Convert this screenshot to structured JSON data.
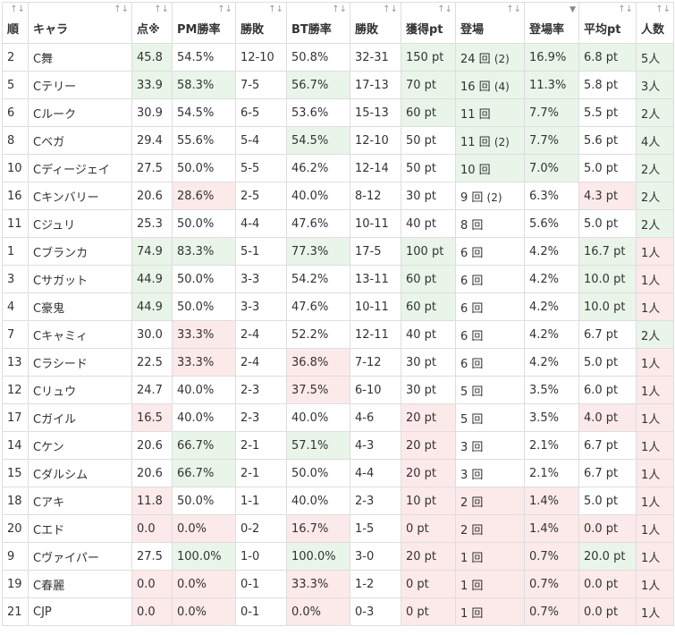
{
  "columns": [
    {
      "key": "rank",
      "label": "順",
      "sort": "↑↓"
    },
    {
      "key": "chara",
      "label": "キャラ",
      "sort": "↑↓"
    },
    {
      "key": "score",
      "label": "点※",
      "sort": "↑↓"
    },
    {
      "key": "pm_rate",
      "label": "PM勝率",
      "sort": "↑↓"
    },
    {
      "key": "record",
      "label": "勝敗",
      "sort": "↑↓"
    },
    {
      "key": "bt_rate",
      "label": "BT勝率",
      "sort": "↑↓"
    },
    {
      "key": "bt_record",
      "label": "勝敗",
      "sort": "↑↓"
    },
    {
      "key": "pt",
      "label": "獲得pt",
      "sort": "↑↓"
    },
    {
      "key": "appear",
      "label": "登場",
      "sort": "↑↓"
    },
    {
      "key": "appear_rate",
      "label": "登場率",
      "sort": "▼"
    },
    {
      "key": "avg_pt",
      "label": "平均pt",
      "sort": "↑↓"
    },
    {
      "key": "players",
      "label": "人数",
      "sort": "↑↓"
    }
  ],
  "colors": {
    "good": "#e8f5e8",
    "bad": "#fce9e9",
    "border": "#dedede"
  },
  "rows": [
    {
      "rank": "2",
      "chara": "C舞",
      "score": "45.8",
      "pm_rate": "54.5%",
      "record": "12-10",
      "bt_rate": "50.8%",
      "bt_record": "32-31",
      "pt": "150 pt",
      "appear": "24 回",
      "appear_extra": "(2)",
      "appear_rate": "16.9%",
      "avg_pt": "6.8 pt",
      "players": "5人",
      "hl": {
        "score": "g",
        "pt": "g",
        "appear": "g",
        "appear_rate": "g",
        "avg_pt": "g",
        "players": "g"
      }
    },
    {
      "rank": "5",
      "chara": "Cテリー",
      "score": "33.9",
      "pm_rate": "58.3%",
      "record": "7-5",
      "bt_rate": "56.7%",
      "bt_record": "17-13",
      "pt": "70 pt",
      "appear": "16 回",
      "appear_extra": "(4)",
      "appear_rate": "11.3%",
      "avg_pt": "5.8 pt",
      "players": "3人",
      "hl": {
        "score": "g",
        "pm_rate": "g",
        "bt_rate": "g",
        "pt": "g",
        "appear": "g",
        "appear_rate": "g",
        "players": "g"
      }
    },
    {
      "rank": "6",
      "chara": "Cルーク",
      "score": "30.9",
      "pm_rate": "54.5%",
      "record": "6-5",
      "bt_rate": "53.6%",
      "bt_record": "15-13",
      "pt": "60 pt",
      "appear": "11 回",
      "appear_extra": "",
      "appear_rate": "7.7%",
      "avg_pt": "5.5 pt",
      "players": "2人",
      "hl": {
        "pt": "g",
        "appear": "g",
        "appear_rate": "g",
        "players": "g"
      }
    },
    {
      "rank": "8",
      "chara": "Cベガ",
      "score": "29.4",
      "pm_rate": "55.6%",
      "record": "5-4",
      "bt_rate": "54.5%",
      "bt_record": "12-10",
      "pt": "50 pt",
      "appear": "11 回",
      "appear_extra": "(2)",
      "appear_rate": "7.7%",
      "avg_pt": "5.6 pt",
      "players": "4人",
      "hl": {
        "bt_rate": "g",
        "appear": "g",
        "appear_rate": "g",
        "players": "g"
      }
    },
    {
      "rank": "10",
      "chara": "Cディージェイ",
      "score": "27.5",
      "pm_rate": "50.0%",
      "record": "5-5",
      "bt_rate": "46.2%",
      "bt_record": "12-14",
      "pt": "50 pt",
      "appear": "10 回",
      "appear_extra": "",
      "appear_rate": "7.0%",
      "avg_pt": "5.0 pt",
      "players": "2人",
      "hl": {
        "appear": "g",
        "appear_rate": "g",
        "players": "g"
      }
    },
    {
      "rank": "16",
      "chara": "Cキンバリー",
      "score": "20.6",
      "pm_rate": "28.6%",
      "record": "2-5",
      "bt_rate": "40.0%",
      "bt_record": "8-12",
      "pt": "30 pt",
      "appear": "9 回",
      "appear_extra": "(2)",
      "appear_rate": "6.3%",
      "avg_pt": "4.3 pt",
      "players": "2人",
      "hl": {
        "pm_rate": "r",
        "avg_pt": "r",
        "players": "g"
      }
    },
    {
      "rank": "11",
      "chara": "Cジュリ",
      "score": "25.3",
      "pm_rate": "50.0%",
      "record": "4-4",
      "bt_rate": "47.6%",
      "bt_record": "10-11",
      "pt": "40 pt",
      "appear": "8 回",
      "appear_extra": "",
      "appear_rate": "5.6%",
      "avg_pt": "5.0 pt",
      "players": "2人",
      "hl": {
        "players": "g"
      }
    },
    {
      "rank": "1",
      "chara": "Cブランカ",
      "score": "74.9",
      "pm_rate": "83.3%",
      "record": "5-1",
      "bt_rate": "77.3%",
      "bt_record": "17-5",
      "pt": "100 pt",
      "appear": "6 回",
      "appear_extra": "",
      "appear_rate": "4.2%",
      "avg_pt": "16.7 pt",
      "players": "1人",
      "hl": {
        "score": "g",
        "pm_rate": "g",
        "bt_rate": "g",
        "pt": "g",
        "avg_pt": "g",
        "players": "r"
      }
    },
    {
      "rank": "3",
      "chara": "Cサガット",
      "score": "44.9",
      "pm_rate": "50.0%",
      "record": "3-3",
      "bt_rate": "54.2%",
      "bt_record": "13-11",
      "pt": "60 pt",
      "appear": "6 回",
      "appear_extra": "",
      "appear_rate": "4.2%",
      "avg_pt": "10.0 pt",
      "players": "1人",
      "hl": {
        "score": "g",
        "pt": "g",
        "avg_pt": "g",
        "players": "r"
      }
    },
    {
      "rank": "4",
      "chara": "C豪鬼",
      "score": "44.9",
      "pm_rate": "50.0%",
      "record": "3-3",
      "bt_rate": "47.6%",
      "bt_record": "10-11",
      "pt": "60 pt",
      "appear": "6 回",
      "appear_extra": "",
      "appear_rate": "4.2%",
      "avg_pt": "10.0 pt",
      "players": "1人",
      "hl": {
        "score": "g",
        "pt": "g",
        "avg_pt": "g",
        "players": "r"
      }
    },
    {
      "rank": "7",
      "chara": "Cキャミィ",
      "score": "30.0",
      "pm_rate": "33.3%",
      "record": "2-4",
      "bt_rate": "52.2%",
      "bt_record": "12-11",
      "pt": "40 pt",
      "appear": "6 回",
      "appear_extra": "",
      "appear_rate": "4.2%",
      "avg_pt": "6.7 pt",
      "players": "2人",
      "hl": {
        "pm_rate": "r",
        "players": "g"
      }
    },
    {
      "rank": "13",
      "chara": "Cラシード",
      "score": "22.5",
      "pm_rate": "33.3%",
      "record": "2-4",
      "bt_rate": "36.8%",
      "bt_record": "7-12",
      "pt": "30 pt",
      "appear": "6 回",
      "appear_extra": "",
      "appear_rate": "4.2%",
      "avg_pt": "5.0 pt",
      "players": "1人",
      "hl": {
        "pm_rate": "r",
        "bt_rate": "r",
        "players": "r"
      }
    },
    {
      "rank": "12",
      "chara": "Cリュウ",
      "score": "24.7",
      "pm_rate": "40.0%",
      "record": "2-3",
      "bt_rate": "37.5%",
      "bt_record": "6-10",
      "pt": "30 pt",
      "appear": "5 回",
      "appear_extra": "",
      "appear_rate": "3.5%",
      "avg_pt": "6.0 pt",
      "players": "1人",
      "hl": {
        "bt_rate": "r",
        "players": "r"
      }
    },
    {
      "rank": "17",
      "chara": "Cガイル",
      "score": "16.5",
      "pm_rate": "40.0%",
      "record": "2-3",
      "bt_rate": "40.0%",
      "bt_record": "4-6",
      "pt": "20 pt",
      "appear": "5 回",
      "appear_extra": "",
      "appear_rate": "3.5%",
      "avg_pt": "4.0 pt",
      "players": "1人",
      "hl": {
        "score": "r",
        "pt": "r",
        "avg_pt": "r",
        "players": "r"
      }
    },
    {
      "rank": "14",
      "chara": "Cケン",
      "score": "20.6",
      "pm_rate": "66.7%",
      "record": "2-1",
      "bt_rate": "57.1%",
      "bt_record": "4-3",
      "pt": "20 pt",
      "appear": "3 回",
      "appear_extra": "",
      "appear_rate": "2.1%",
      "avg_pt": "6.7 pt",
      "players": "1人",
      "hl": {
        "pm_rate": "g",
        "bt_rate": "g",
        "pt": "r",
        "players": "r"
      }
    },
    {
      "rank": "15",
      "chara": "Cダルシム",
      "score": "20.6",
      "pm_rate": "66.7%",
      "record": "2-1",
      "bt_rate": "50.0%",
      "bt_record": "4-4",
      "pt": "20 pt",
      "appear": "3 回",
      "appear_extra": "",
      "appear_rate": "2.1%",
      "avg_pt": "6.7 pt",
      "players": "1人",
      "hl": {
        "pm_rate": "g",
        "pt": "r",
        "players": "r"
      }
    },
    {
      "rank": "18",
      "chara": "Cアキ",
      "score": "11.8",
      "pm_rate": "50.0%",
      "record": "1-1",
      "bt_rate": "40.0%",
      "bt_record": "2-3",
      "pt": "10 pt",
      "appear": "2 回",
      "appear_extra": "",
      "appear_rate": "1.4%",
      "avg_pt": "5.0 pt",
      "players": "1人",
      "hl": {
        "score": "r",
        "pt": "r",
        "appear": "r",
        "appear_rate": "r",
        "players": "r"
      }
    },
    {
      "rank": "20",
      "chara": "Cエド",
      "score": "0.0",
      "pm_rate": "0.0%",
      "record": "0-2",
      "bt_rate": "16.7%",
      "bt_record": "1-5",
      "pt": "0 pt",
      "appear": "2 回",
      "appear_extra": "",
      "appear_rate": "1.4%",
      "avg_pt": "0.0 pt",
      "players": "1人",
      "hl": {
        "score": "r",
        "pm_rate": "r",
        "bt_rate": "r",
        "pt": "r",
        "appear": "r",
        "appear_rate": "r",
        "avg_pt": "r",
        "players": "r"
      }
    },
    {
      "rank": "9",
      "chara": "Cヴァイパー",
      "score": "27.5",
      "pm_rate": "100.0%",
      "record": "1-0",
      "bt_rate": "100.0%",
      "bt_record": "3-0",
      "pt": "20 pt",
      "appear": "1 回",
      "appear_extra": "",
      "appear_rate": "0.7%",
      "avg_pt": "20.0 pt",
      "players": "1人",
      "hl": {
        "pm_rate": "g",
        "bt_rate": "g",
        "pt": "r",
        "appear": "r",
        "appear_rate": "r",
        "avg_pt": "g",
        "players": "r"
      }
    },
    {
      "rank": "19",
      "chara": "C春麗",
      "score": "0.0",
      "pm_rate": "0.0%",
      "record": "0-1",
      "bt_rate": "33.3%",
      "bt_record": "1-2",
      "pt": "0 pt",
      "appear": "1 回",
      "appear_extra": "",
      "appear_rate": "0.7%",
      "avg_pt": "0.0 pt",
      "players": "1人",
      "hl": {
        "score": "r",
        "pm_rate": "r",
        "bt_rate": "r",
        "pt": "r",
        "appear": "r",
        "appear_rate": "r",
        "avg_pt": "r",
        "players": "r"
      }
    },
    {
      "rank": "21",
      "chara": "CJP",
      "score": "0.0",
      "pm_rate": "0.0%",
      "record": "0-1",
      "bt_rate": "0.0%",
      "bt_record": "0-3",
      "pt": "0 pt",
      "appear": "1 回",
      "appear_extra": "",
      "appear_rate": "0.7%",
      "avg_pt": "0.0 pt",
      "players": "1人",
      "hl": {
        "score": "r",
        "pm_rate": "r",
        "bt_rate": "r",
        "pt": "r",
        "appear": "r",
        "appear_rate": "r",
        "avg_pt": "r",
        "players": "r"
      }
    }
  ]
}
